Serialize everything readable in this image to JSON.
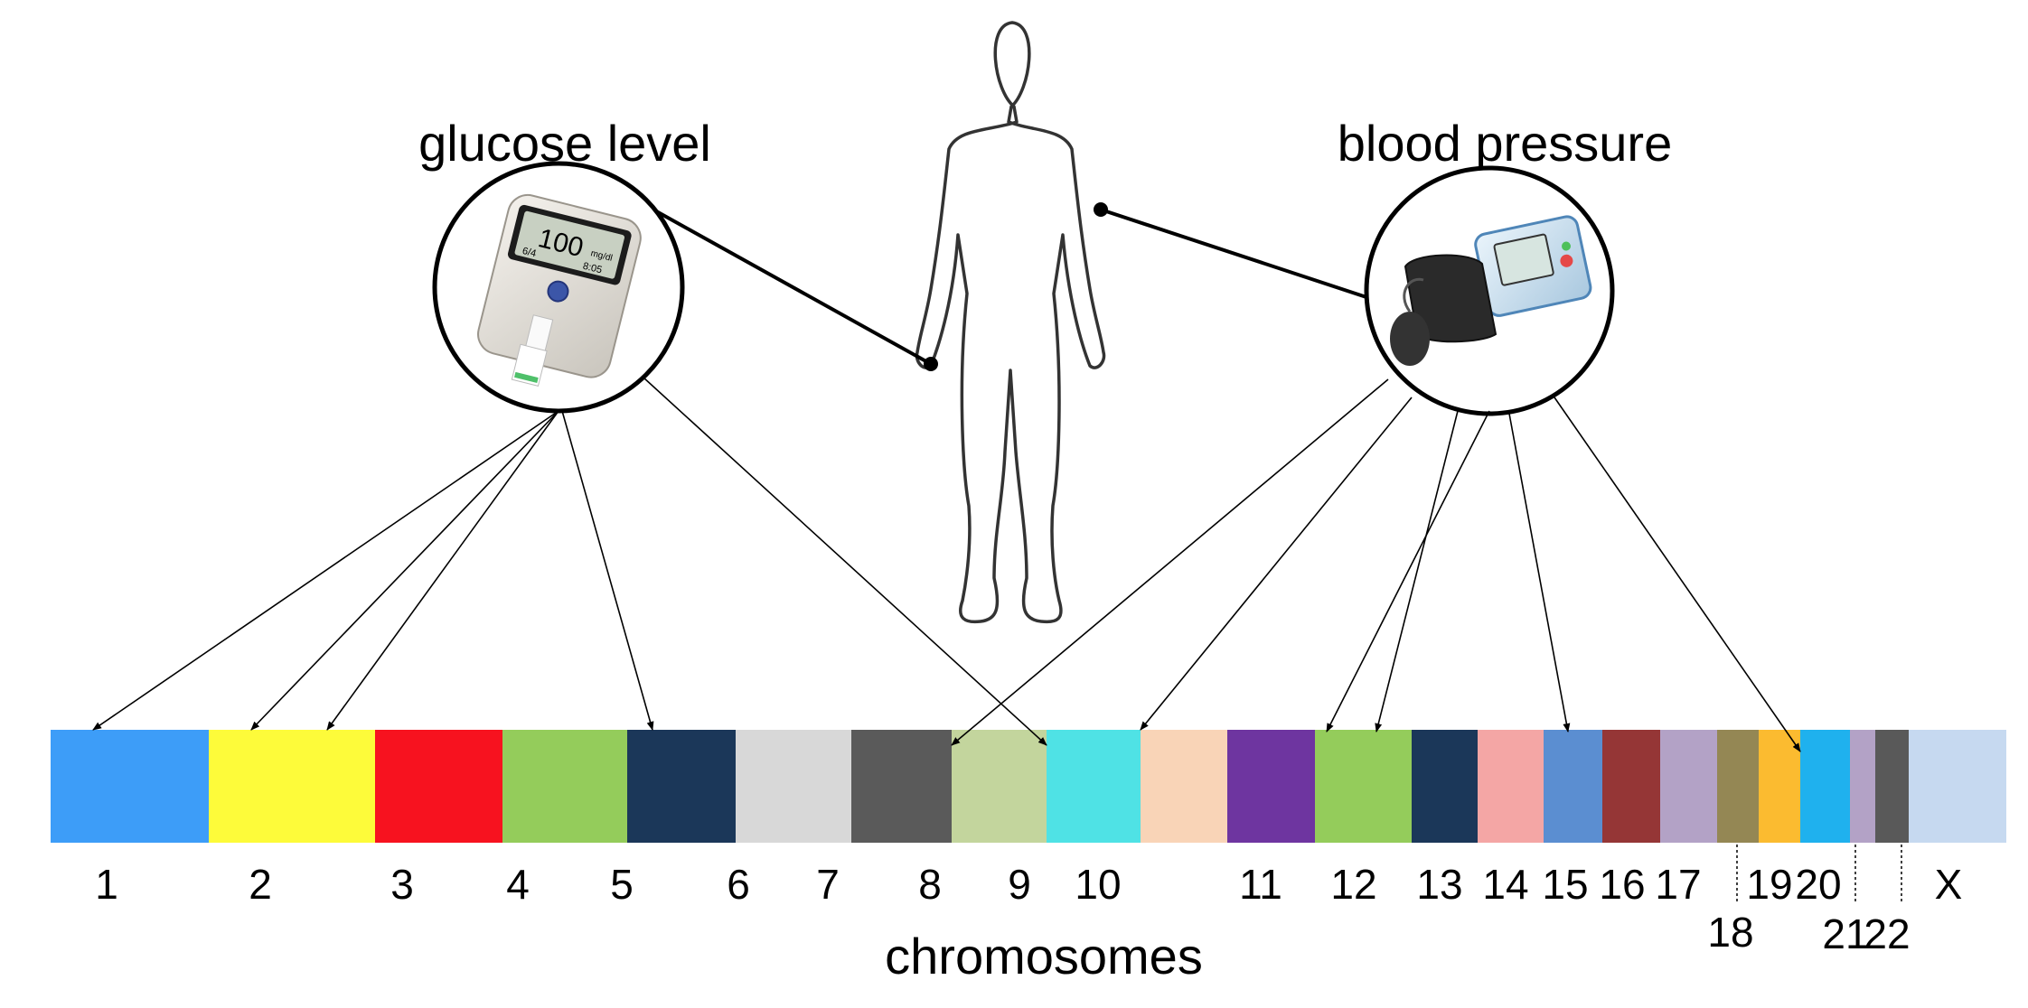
{
  "labels": {
    "glucose": "glucose level",
    "blood_pressure": "blood pressure",
    "axis": "chromosomes"
  },
  "meter_display": {
    "reading": "100",
    "unit": "mg/dl",
    "date": "6/4",
    "time": "8:05"
  },
  "chromosomes": [
    {
      "label": "1",
      "color": "#3d9df8"
    },
    {
      "label": "2",
      "color": "#fdfb3a"
    },
    {
      "label": "3",
      "color": "#f7121f"
    },
    {
      "label": "4",
      "color": "#94cc5b"
    },
    {
      "label": "5",
      "color": "#1b3759"
    },
    {
      "label": "6",
      "color": "#d8d8d8"
    },
    {
      "label": "7",
      "color": "#5a5a5a"
    },
    {
      "label": "8",
      "color": "#c3d59d"
    },
    {
      "label": "9",
      "color": "#4fe2e5"
    },
    {
      "label": "10",
      "color": "#f9d4b7"
    },
    {
      "label": "11",
      "color": "#6e35a0"
    },
    {
      "label": "12",
      "color": "#94cc5b"
    },
    {
      "label": "13",
      "color": "#1b3759"
    },
    {
      "label": "14",
      "color": "#f4a6a5"
    },
    {
      "label": "15",
      "color": "#5b8ed1"
    },
    {
      "label": "16",
      "color": "#953636"
    },
    {
      "label": "17",
      "color": "#b3a2c6"
    },
    {
      "label": "18",
      "color": "#948754"
    },
    {
      "label": "19",
      "color": "#fbbb30"
    },
    {
      "label": "20",
      "color": "#1fb1ee"
    },
    {
      "label": "21",
      "color": "#b3a2c6"
    },
    {
      "label": "22",
      "color": "#595959"
    },
    {
      "label": "X",
      "color": "#c6d9f0"
    }
  ]
}
